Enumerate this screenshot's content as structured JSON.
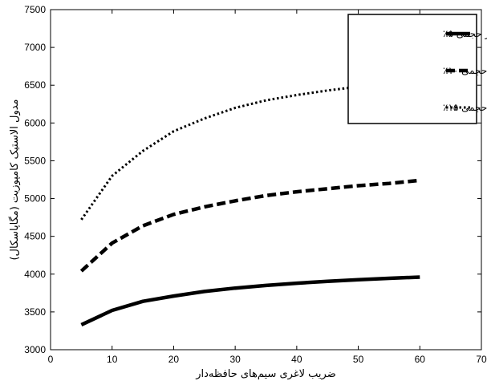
{
  "chart_data": {
    "type": "line",
    "title": "",
    "xlabel": "ضریب لاغری سیم‌های حافظه‌دار",
    "ylabel": "مدول الاستیک کامپوزیت (مگاپاسکال)",
    "xlim": [
      0,
      70
    ],
    "ylim": [
      3000,
      7500
    ],
    "x_ticks": [
      0,
      10,
      20,
      30,
      40,
      50,
      60,
      70
    ],
    "y_ticks": [
      3000,
      3500,
      4000,
      4500,
      5000,
      5500,
      6000,
      6500,
      7000,
      7500
    ],
    "grid": false,
    "legend_position": "top-right",
    "series": [
      {
        "name": "کسر حجمی ۵٪",
        "style": "solid",
        "color": "#000000",
        "x": [
          5,
          10,
          15,
          20,
          25,
          30,
          35,
          40,
          45,
          50,
          55,
          60
        ],
        "y": [
          3330,
          3520,
          3640,
          3710,
          3770,
          3815,
          3850,
          3880,
          3905,
          3925,
          3945,
          3960
        ]
      },
      {
        "name": "کسر حجمی ۱۰٪",
        "style": "dashed",
        "color": "#000000",
        "x": [
          5,
          10,
          15,
          20,
          25,
          30,
          35,
          40,
          45,
          50,
          55,
          60
        ],
        "y": [
          4040,
          4410,
          4640,
          4790,
          4890,
          4970,
          5040,
          5090,
          5130,
          5170,
          5200,
          5240
        ]
      },
      {
        "name": "کسر حجمی ۱۵٪",
        "style": "dotted",
        "color": "#000000",
        "x": [
          5,
          10,
          15,
          20,
          25,
          30,
          35,
          40,
          45,
          50
        ],
        "y": [
          4720,
          5300,
          5630,
          5890,
          6060,
          6200,
          6300,
          6370,
          6430,
          6480
        ]
      }
    ]
  }
}
